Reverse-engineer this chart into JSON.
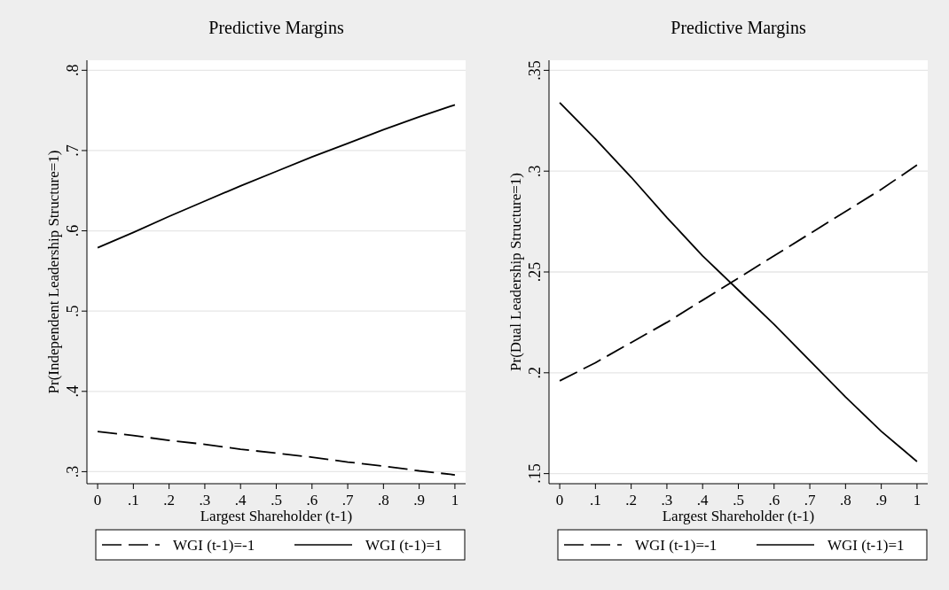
{
  "chart_data": [
    {
      "type": "line",
      "title": "Predictive Margins",
      "xlabel": "Largest Shareholder (t-1)",
      "ylabel": "Pr(Independent Leadership Structure=1)",
      "x": [
        0,
        0.1,
        0.2,
        0.3,
        0.4,
        0.5,
        0.6,
        0.7,
        0.8,
        0.9,
        1
      ],
      "series": [
        {
          "name": "WGI (t-1)=-1",
          "color": "#000000",
          "line_style": "dashed",
          "values": [
            0.35,
            0.345,
            0.339,
            0.334,
            0.328,
            0.323,
            0.318,
            0.312,
            0.307,
            0.301,
            0.296
          ]
        },
        {
          "name": "WGI (t-1)=1",
          "color": "#000000",
          "line_style": "solid",
          "values": [
            0.579,
            0.598,
            0.618,
            0.637,
            0.656,
            0.674,
            0.692,
            0.709,
            0.726,
            0.742,
            0.757
          ]
        }
      ],
      "xlim": [
        -0.03,
        1.03
      ],
      "ylim": [
        0.285,
        0.8125
      ],
      "xticks": [
        {
          "value": 0,
          "label": "0"
        },
        {
          "value": 0.1,
          "label": ".1"
        },
        {
          "value": 0.2,
          "label": ".2"
        },
        {
          "value": 0.3,
          "label": ".3"
        },
        {
          "value": 0.4,
          "label": ".4"
        },
        {
          "value": 0.5,
          "label": ".5"
        },
        {
          "value": 0.6,
          "label": ".6"
        },
        {
          "value": 0.7,
          "label": ".7"
        },
        {
          "value": 0.8,
          "label": ".8"
        },
        {
          "value": 0.9,
          "label": ".9"
        },
        {
          "value": 1,
          "label": "1"
        }
      ],
      "yticks": [
        {
          "value": 0.3,
          "label": ".3"
        },
        {
          "value": 0.4,
          "label": ".4"
        },
        {
          "value": 0.5,
          "label": ".5"
        },
        {
          "value": 0.6,
          "label": ".6"
        },
        {
          "value": 0.7,
          "label": ".7"
        },
        {
          "value": 0.8,
          "label": ".8"
        }
      ],
      "grid": "y",
      "legend": "bottom"
    },
    {
      "type": "line",
      "title": "Predictive Margins",
      "xlabel": "Largest Shareholder (t-1)",
      "ylabel": "Pr(Dual Leadership Structure=1)",
      "x": [
        0,
        0.1,
        0.2,
        0.3,
        0.4,
        0.5,
        0.6,
        0.7,
        0.8,
        0.9,
        1
      ],
      "series": [
        {
          "name": "WGI (t-1)=-1",
          "color": "#000000",
          "line_style": "dashed",
          "values": [
            0.196,
            0.205,
            0.215,
            0.225,
            0.236,
            0.247,
            0.258,
            0.269,
            0.28,
            0.291,
            0.303
          ]
        },
        {
          "name": "WGI (t-1)=1",
          "color": "#000000",
          "line_style": "solid",
          "values": [
            0.334,
            0.316,
            0.297,
            0.277,
            0.258,
            0.241,
            0.224,
            0.206,
            0.188,
            0.171,
            0.156
          ]
        }
      ],
      "xlim": [
        -0.03,
        1.03
      ],
      "ylim": [
        0.145,
        0.355
      ],
      "xticks": [
        {
          "value": 0,
          "label": "0"
        },
        {
          "value": 0.1,
          "label": ".1"
        },
        {
          "value": 0.2,
          "label": ".2"
        },
        {
          "value": 0.3,
          "label": ".3"
        },
        {
          "value": 0.4,
          "label": ".4"
        },
        {
          "value": 0.5,
          "label": ".5"
        },
        {
          "value": 0.6,
          "label": ".6"
        },
        {
          "value": 0.7,
          "label": ".7"
        },
        {
          "value": 0.8,
          "label": ".8"
        },
        {
          "value": 0.9,
          "label": ".9"
        },
        {
          "value": 1,
          "label": "1"
        }
      ],
      "yticks": [
        {
          "value": 0.15,
          "label": ".15"
        },
        {
          "value": 0.2,
          "label": ".2"
        },
        {
          "value": 0.25,
          "label": ".25"
        },
        {
          "value": 0.3,
          "label": ".3"
        },
        {
          "value": 0.35,
          "label": ".35"
        }
      ],
      "grid": "y",
      "legend": "bottom"
    }
  ]
}
